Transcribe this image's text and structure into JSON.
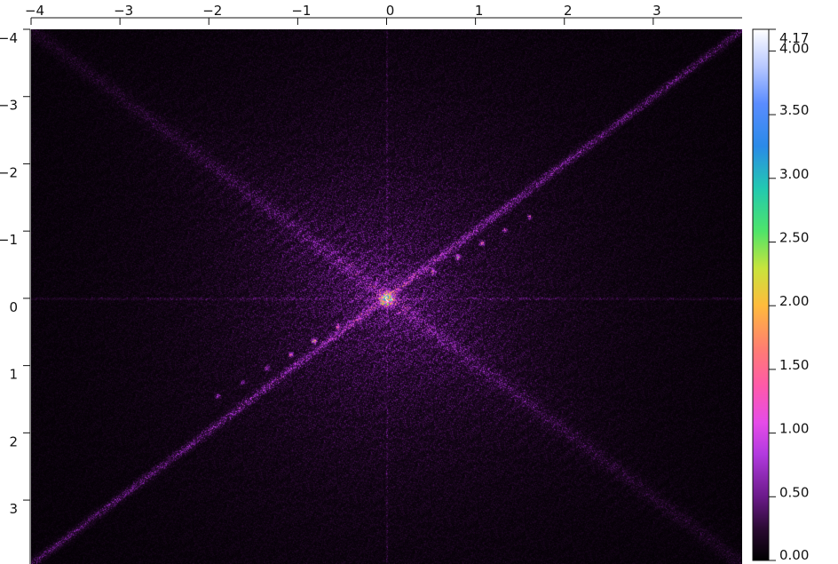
{
  "chart_data": {
    "type": "heatmap",
    "title": "",
    "xlabel": "",
    "ylabel": "",
    "xlim": [
      -4.0,
      4.0
    ],
    "ylim_top_to_bottom": [
      -4.0,
      3.95
    ],
    "x_axis_position": "top",
    "y_axis_inverted": true,
    "grid": false,
    "x_ticks": [
      -4,
      -3,
      -2,
      -1,
      0,
      1,
      2,
      3
    ],
    "x_tick_labels": [
      "−4",
      "−3",
      "−2",
      "−1",
      "0",
      "1",
      "2",
      "3"
    ],
    "y_ticks": [
      -4,
      -3,
      -2,
      -1,
      0,
      1,
      2,
      3
    ],
    "y_tick_labels": [
      "−4",
      "−3",
      "−2",
      "−1",
      "0",
      "1",
      "2",
      "3"
    ],
    "colormap": "gwyddion-like: black-purple-magenta-pink-orange-yellow-green-cyan-blue-white",
    "colorbar": {
      "min": 0.0,
      "max": 4.17,
      "ticks": [
        0.0,
        0.5,
        1.0,
        1.5,
        2.0,
        2.5,
        3.0,
        3.5,
        4.0,
        4.17
      ],
      "tick_labels": [
        "0.00",
        "0.50",
        "1.00",
        "1.50",
        "2.00",
        "2.50",
        "3.00",
        "3.50",
        "4.00",
        "4.17"
      ],
      "placement": "right"
    },
    "features": {
      "center_peak": {
        "x": 0.0,
        "y": 0.0,
        "value": 4.17
      },
      "main_streak": {
        "from": [
          -4.0,
          3.95
        ],
        "to": [
          4.0,
          -4.0
        ],
        "typical_value": 0.6
      },
      "secondary_streak": {
        "from": [
          -4.0,
          -4.0
        ],
        "to": [
          4.0,
          3.95
        ],
        "typical_value": 0.2
      },
      "bright_spots_along_main_streak": [
        {
          "x": 0.52,
          "y": -0.4,
          "value": 1.6
        },
        {
          "x": 0.8,
          "y": -0.62,
          "value": 1.8
        },
        {
          "x": 1.07,
          "y": -0.82,
          "value": 1.5
        },
        {
          "x": 1.33,
          "y": -1.02,
          "value": 1.2
        },
        {
          "x": 1.6,
          "y": -1.22,
          "value": 1.0
        },
        {
          "x": -0.55,
          "y": 0.42,
          "value": 1.8
        },
        {
          "x": -0.82,
          "y": 0.63,
          "value": 1.9
        },
        {
          "x": -1.08,
          "y": 0.83,
          "value": 1.6
        },
        {
          "x": -1.35,
          "y": 1.03,
          "value": 1.2
        },
        {
          "x": -1.62,
          "y": 1.24,
          "value": 1.0
        },
        {
          "x": -1.9,
          "y": 1.45,
          "value": 0.9
        }
      ],
      "faint_axis_lines": {
        "vertical_at_x": 0.0,
        "horizontal_at_y": 0.0,
        "value": 0.15
      }
    }
  }
}
